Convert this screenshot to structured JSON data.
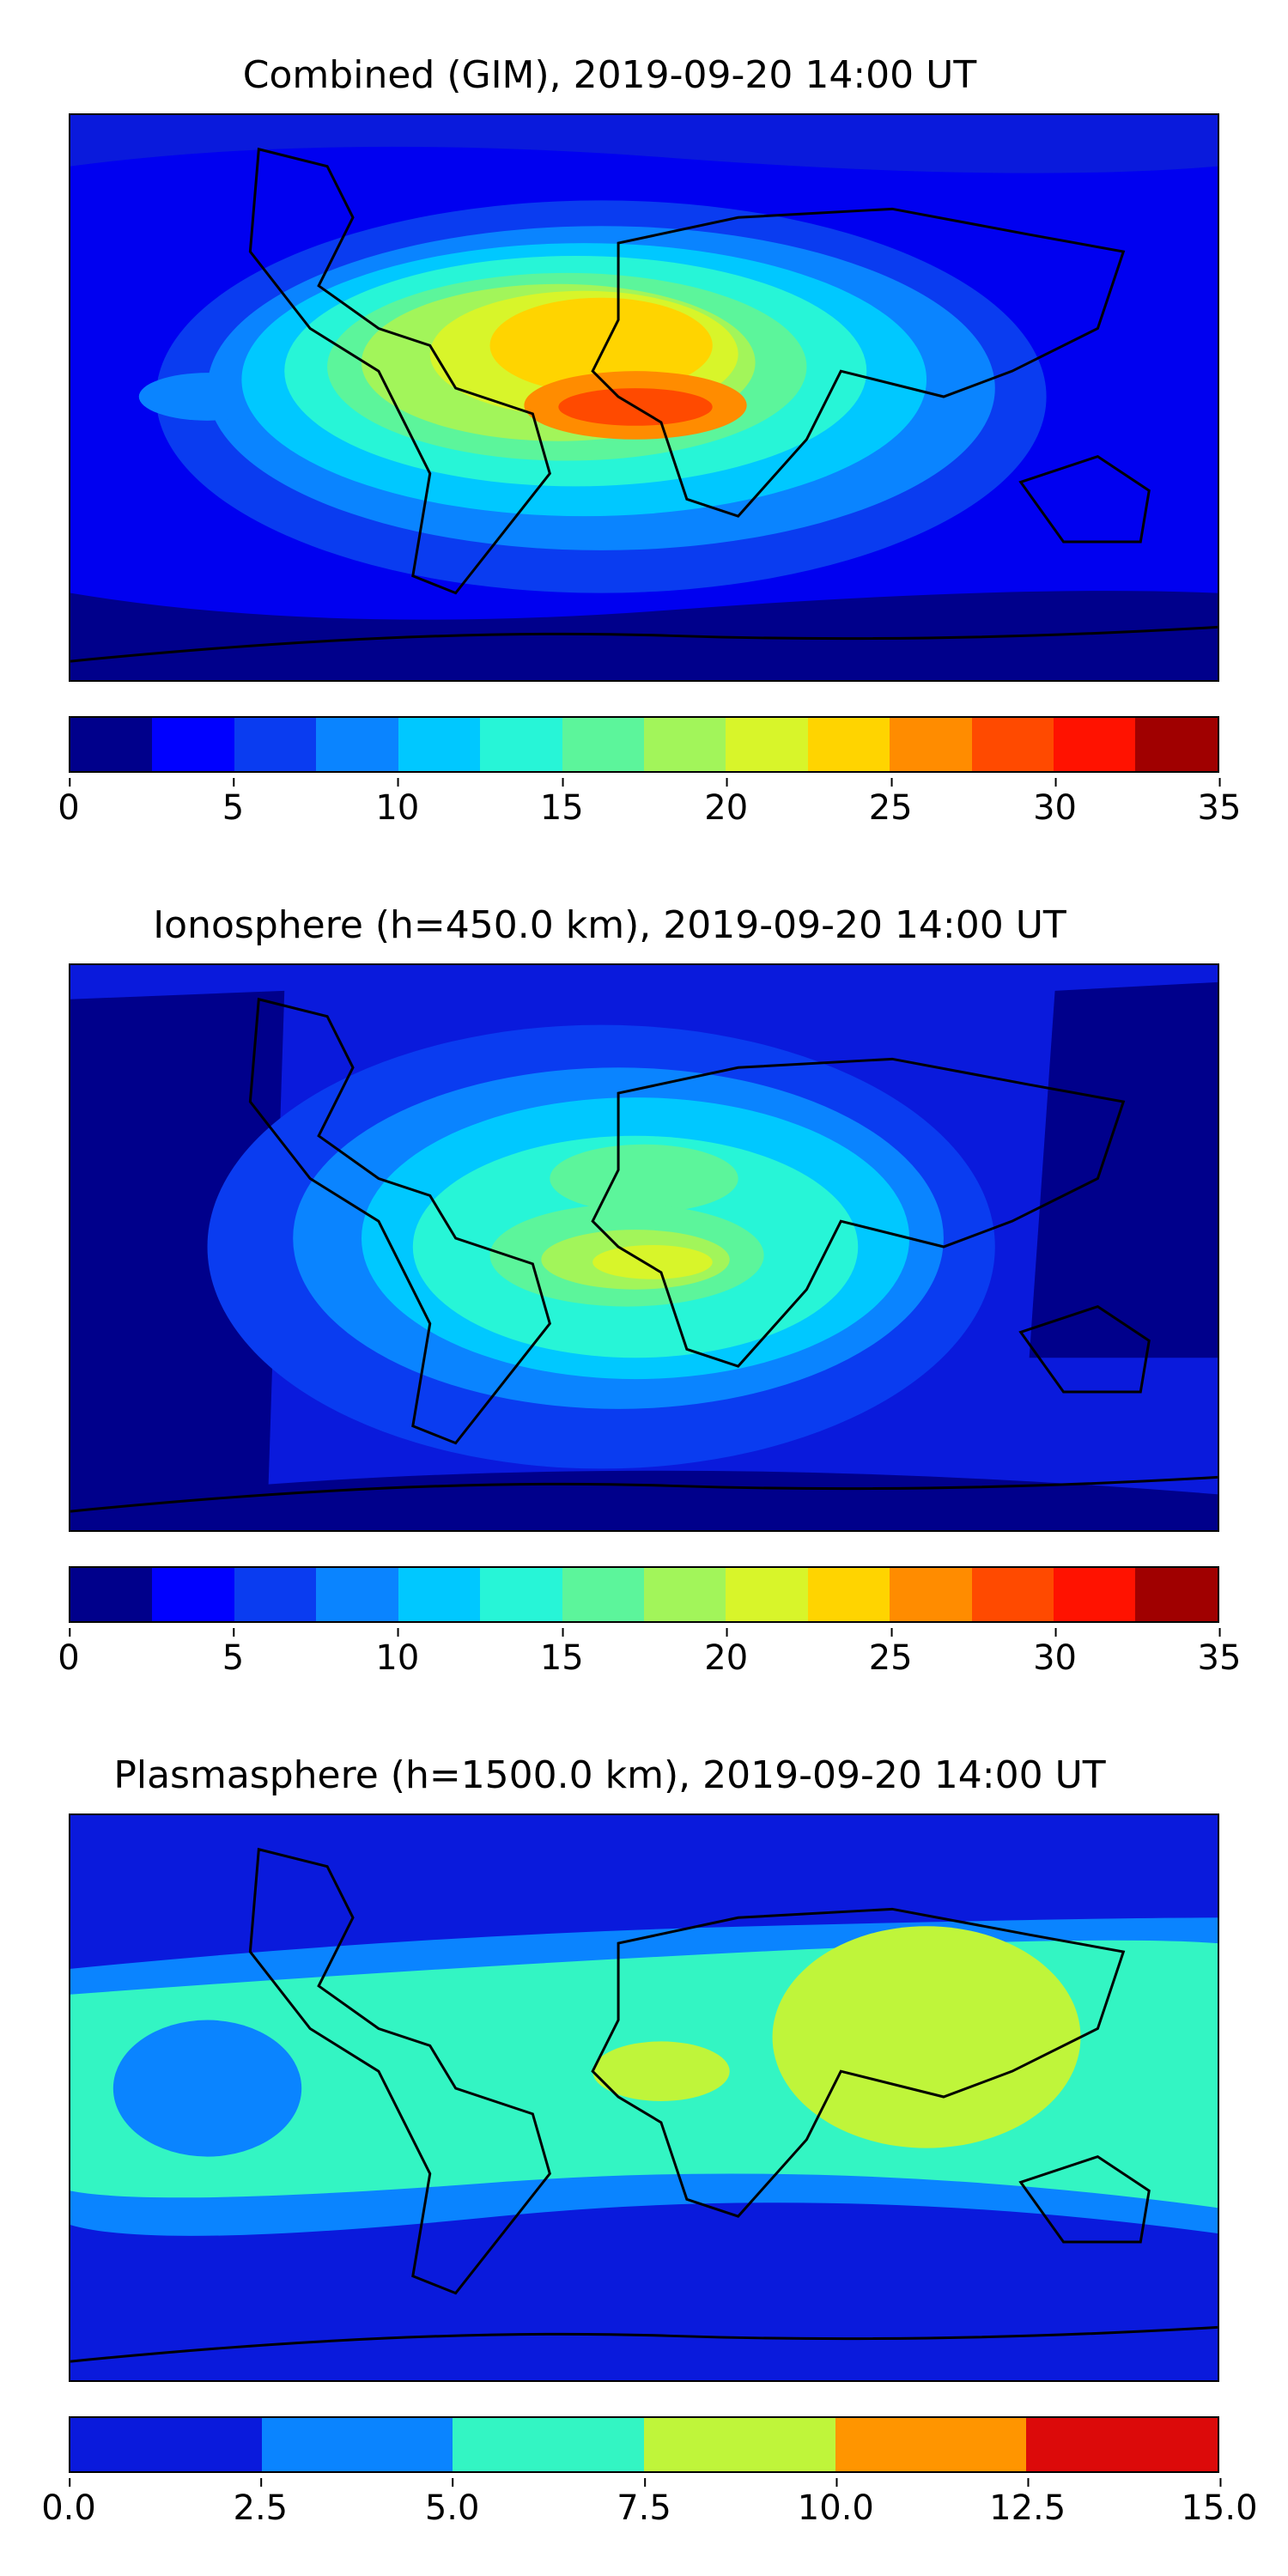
{
  "panels": [
    {
      "title": "Combined (GIM), 2019-09-20 14:00 UT",
      "colorbar": {
        "colors": [
          "#00008b",
          "#0000ff",
          "#0a3cf0",
          "#0a84ff",
          "#00c8ff",
          "#27f5d7",
          "#5cf59b",
          "#a2f55a",
          "#d8f52a",
          "#ffd400",
          "#ff8c00",
          "#ff4a00",
          "#ff1200",
          "#a00000"
        ],
        "ticks": [
          "0",
          "5",
          "10",
          "15",
          "20",
          "25",
          "30",
          "35"
        ],
        "range": [
          0,
          35
        ]
      }
    },
    {
      "title": "Ionosphere  (h=450.0 km), 2019-09-20 14:00 UT",
      "colorbar": {
        "colors": [
          "#00008b",
          "#0000ff",
          "#0a3cf0",
          "#0a84ff",
          "#00c8ff",
          "#27f5d7",
          "#5cf59b",
          "#a2f55a",
          "#d8f52a",
          "#ffd400",
          "#ff8c00",
          "#ff4a00",
          "#ff1200",
          "#a00000"
        ],
        "ticks": [
          "0",
          "5",
          "10",
          "15",
          "20",
          "25",
          "30",
          "35"
        ],
        "range": [
          0,
          35
        ]
      }
    },
    {
      "title": "Plasmasphere (h=1500.0 km), 2019-09-20 14:00 UT",
      "colorbar": {
        "colors": [
          "#0a1adc",
          "#0a84ff",
          "#33f5c3",
          "#bff53a",
          "#ff9500",
          "#dc0a0a"
        ],
        "ticks": [
          "0.0",
          "2.5",
          "5.0",
          "7.5",
          "10.0",
          "12.5",
          "15.0"
        ],
        "range": [
          0,
          15
        ]
      }
    }
  ]
}
